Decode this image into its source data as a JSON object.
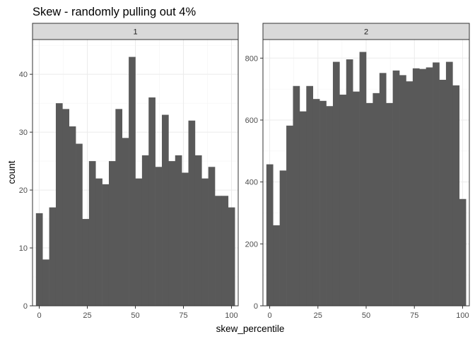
{
  "chart_data": {
    "type": "bar",
    "title": "Skew - randomly pulling out 4%",
    "xlabel": "skew_percentile",
    "ylabel": "count",
    "grid": true,
    "bin_width": 3.4483,
    "x_ticks": [
      0,
      25,
      50,
      75,
      100
    ],
    "xlim": [
      -3.5,
      103.5
    ],
    "panels": [
      {
        "strip": "1",
        "ylim": [
          0,
          46
        ],
        "y_ticks": [
          0,
          10,
          20,
          30,
          40
        ],
        "bin_centers": [
          0,
          3.4483,
          6.8966,
          10.3448,
          13.7931,
          17.2414,
          20.6897,
          24.1379,
          27.5862,
          31.0345,
          34.4828,
          37.931,
          41.3793,
          44.8276,
          48.2759,
          51.7241,
          55.1724,
          58.6207,
          62.069,
          65.5172,
          68.9655,
          72.4138,
          75.8621,
          79.3103,
          82.7586,
          86.2069,
          89.6552,
          93.1034,
          96.5517,
          100
        ],
        "counts": [
          16,
          8,
          17,
          35,
          34,
          31,
          28,
          15,
          25,
          22,
          21,
          25,
          34,
          29,
          43,
          22,
          26,
          36,
          24,
          33,
          25,
          26,
          23,
          32,
          26,
          22,
          24,
          19,
          19,
          17
        ]
      },
      {
        "strip": "2",
        "ylim": [
          0,
          860
        ],
        "y_ticks": [
          0,
          200,
          400,
          600,
          800
        ],
        "bin_centers": [
          0,
          3.4483,
          6.8966,
          10.3448,
          13.7931,
          17.2414,
          20.6897,
          24.1379,
          27.5862,
          31.0345,
          34.4828,
          37.931,
          41.3793,
          44.8276,
          48.2759,
          51.7241,
          55.1724,
          58.6207,
          62.069,
          65.5172,
          68.9655,
          72.4138,
          75.8621,
          79.3103,
          82.7586,
          86.2069,
          89.6552,
          93.1034,
          96.5517,
          100
        ],
        "counts": [
          457,
          260,
          437,
          582,
          710,
          628,
          710,
          668,
          662,
          645,
          788,
          682,
          796,
          692,
          820,
          655,
          687,
          752,
          655,
          760,
          745,
          725,
          767,
          765,
          770,
          786,
          730,
          788,
          712,
          345
        ]
      }
    ]
  }
}
